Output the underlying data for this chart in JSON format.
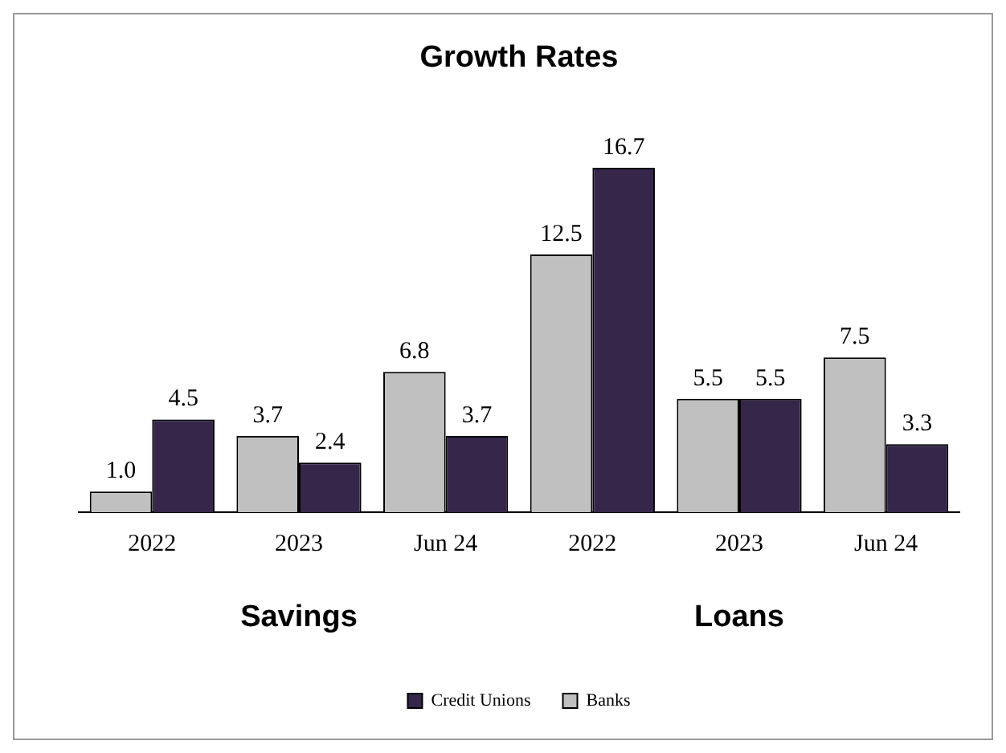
{
  "chart_data": {
    "type": "bar",
    "title": "Growth Rates",
    "categories": [
      "2022",
      "2023",
      "Jun 24",
      "2022",
      "2023",
      "Jun 24"
    ],
    "series": [
      {
        "name": "Banks",
        "color": "#c0c0c0",
        "values": [
          1.0,
          3.7,
          6.8,
          12.5,
          5.5,
          7.5
        ],
        "value_labels": [
          "1.0",
          "3.7",
          "6.8",
          "12.5",
          "5.5",
          "7.5"
        ]
      },
      {
        "name": "Credit Unions",
        "color": "#35264a",
        "values": [
          4.5,
          2.4,
          3.7,
          16.7,
          5.5,
          3.3
        ],
        "value_labels": [
          "4.5",
          "2.4",
          "3.7",
          "16.7",
          "5.5",
          "3.3"
        ]
      }
    ],
    "annotations": [
      "Savings",
      "Loans"
    ],
    "legend": "bottom",
    "grid": false
  }
}
